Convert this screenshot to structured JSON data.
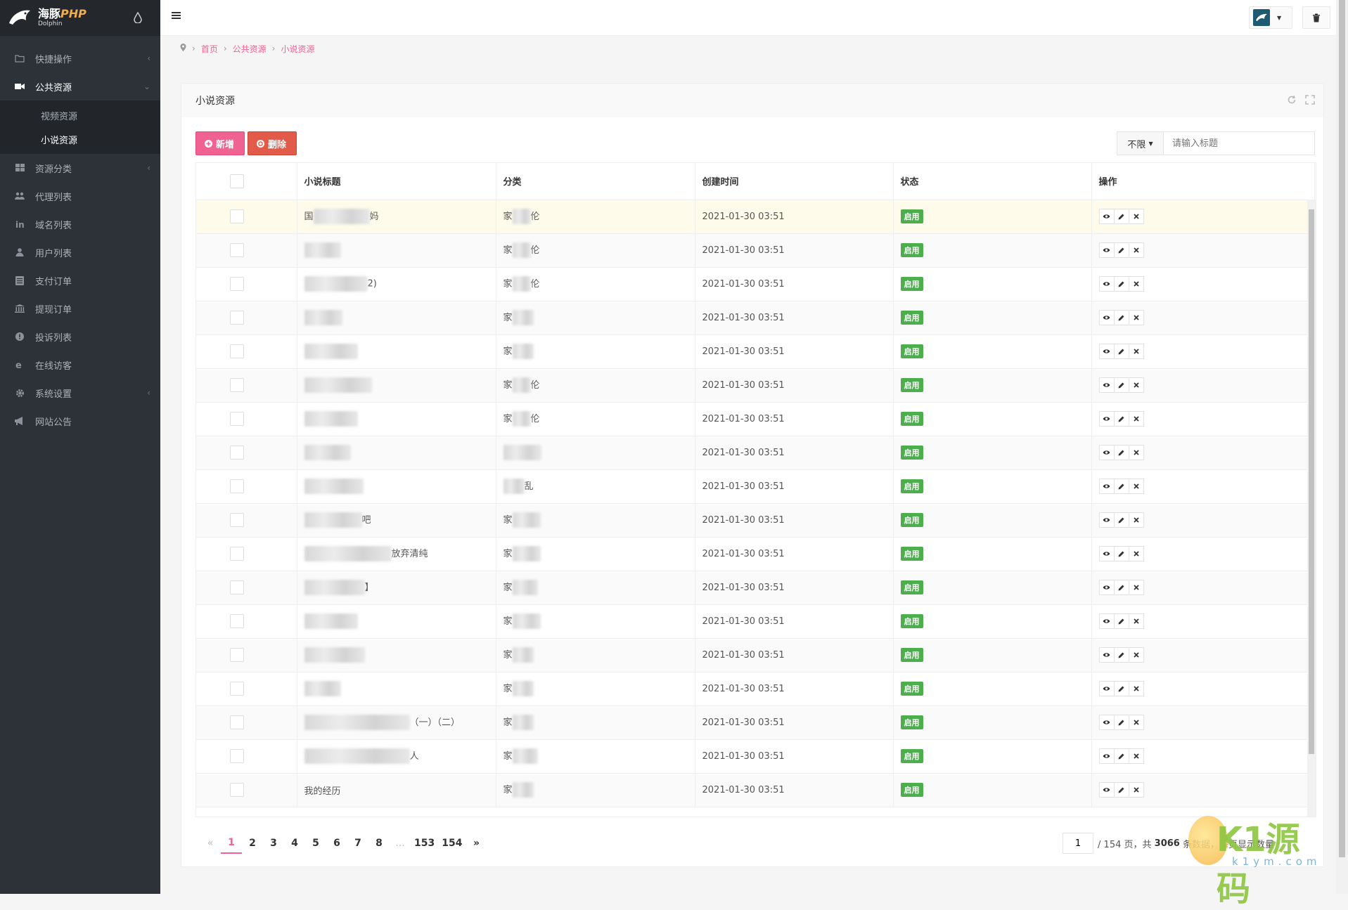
{
  "logo": {
    "main": "海豚",
    "main_accent": "PHP",
    "sub": "Dolphin"
  },
  "sidebar": {
    "items": [
      {
        "label": "快捷操作",
        "icon": "folder-icon",
        "chevron": "‹"
      },
      {
        "label": "公共资源",
        "icon": "video-icon",
        "chevron": "⌄",
        "active": true,
        "children": [
          {
            "label": "视频资源"
          },
          {
            "label": "小说资源",
            "active": true
          }
        ]
      },
      {
        "label": "资源分类",
        "icon": "grid-icon",
        "chevron": "‹"
      },
      {
        "label": "代理列表",
        "icon": "users-icon",
        "chevron": ""
      },
      {
        "label": "域名列表",
        "icon": "linkedin-icon",
        "chevron": ""
      },
      {
        "label": "用户列表",
        "icon": "user-icon",
        "chevron": ""
      },
      {
        "label": "支付订单",
        "icon": "list-icon",
        "chevron": ""
      },
      {
        "label": "提现订单",
        "icon": "bank-icon",
        "chevron": ""
      },
      {
        "label": "投诉列表",
        "icon": "alert-icon",
        "chevron": ""
      },
      {
        "label": "在线访客",
        "icon": "browser-icon",
        "chevron": ""
      },
      {
        "label": "系统设置",
        "icon": "gear-icon",
        "chevron": "‹"
      },
      {
        "label": "网站公告",
        "icon": "megaphone-icon",
        "chevron": ""
      }
    ]
  },
  "breadcrumb": [
    "首页",
    "公共资源",
    "小说资源"
  ],
  "panel": {
    "title": "小说资源"
  },
  "toolbar": {
    "add_label": "新增",
    "delete_label": "删除"
  },
  "search": {
    "select_label": "不限",
    "placeholder": "请输入标题"
  },
  "table": {
    "headers": [
      "小说标题",
      "分类",
      "创建时间",
      "状态",
      "操作"
    ],
    "status_label": "启用",
    "rows": [
      {
        "t_pre": "国",
        "t_blur": 80,
        "t_post": "妈",
        "c_pre": "家",
        "c_blur": 26,
        "c_post": "伦",
        "time": "2021-01-30 03:51"
      },
      {
        "t_pre": "",
        "t_blur": 52,
        "t_post": "",
        "c_pre": "家",
        "c_blur": 26,
        "c_post": "伦",
        "time": "2021-01-30 03:51"
      },
      {
        "t_pre": "",
        "t_blur": 90,
        "t_post": "2)",
        "c_pre": "家",
        "c_blur": 26,
        "c_post": "伦",
        "time": "2021-01-30 03:51"
      },
      {
        "t_pre": "",
        "t_blur": 54,
        "t_post": "",
        "c_pre": "家",
        "c_blur": 30,
        "c_post": "",
        "time": "2021-01-30 03:51"
      },
      {
        "t_pre": "",
        "t_blur": 76,
        "t_post": "",
        "c_pre": "家",
        "c_blur": 30,
        "c_post": "",
        "time": "2021-01-30 03:51"
      },
      {
        "t_pre": "",
        "t_blur": 96,
        "t_post": "",
        "c_pre": "家",
        "c_blur": 26,
        "c_post": "伦",
        "time": "2021-01-30 03:51"
      },
      {
        "t_pre": "",
        "t_blur": 76,
        "t_post": "",
        "c_pre": "家",
        "c_blur": 26,
        "c_post": "伦",
        "time": "2021-01-30 03:51"
      },
      {
        "t_pre": "",
        "t_blur": 66,
        "t_post": "",
        "c_pre": "",
        "c_blur": 54,
        "c_post": "",
        "time": "2021-01-30 03:51"
      },
      {
        "t_pre": "",
        "t_blur": 84,
        "t_post": "",
        "c_pre": "",
        "c_blur": 30,
        "c_post": "乱",
        "time": "2021-01-30 03:51"
      },
      {
        "t_pre": "",
        "t_blur": 82,
        "t_post": "吧",
        "c_pre": "家",
        "c_blur": 40,
        "c_post": "",
        "time": "2021-01-30 03:51"
      },
      {
        "t_pre": "",
        "t_blur": 124,
        "t_post": "放弃清纯",
        "c_pre": "家",
        "c_blur": 40,
        "c_post": "",
        "time": "2021-01-30 03:51"
      },
      {
        "t_pre": "",
        "t_blur": 86,
        "t_post": "】",
        "c_pre": "家",
        "c_blur": 36,
        "c_post": "",
        "time": "2021-01-30 03:51"
      },
      {
        "t_pre": "",
        "t_blur": 76,
        "t_post": "",
        "c_pre": "家",
        "c_blur": 40,
        "c_post": "",
        "time": "2021-01-30 03:51"
      },
      {
        "t_pre": "",
        "t_blur": 86,
        "t_post": "",
        "c_pre": "家",
        "c_blur": 30,
        "c_post": "",
        "time": "2021-01-30 03:51"
      },
      {
        "t_pre": "",
        "t_blur": 52,
        "t_post": "",
        "c_pre": "家",
        "c_blur": 30,
        "c_post": "",
        "time": "2021-01-30 03:51"
      },
      {
        "t_pre": "",
        "t_blur": 150,
        "t_post": "（一）（二）",
        "c_pre": "家",
        "c_blur": 30,
        "c_post": "",
        "time": "2021-01-30 03:51"
      },
      {
        "t_pre": "",
        "t_blur": 150,
        "t_post": "人",
        "c_pre": "家",
        "c_blur": 36,
        "c_post": "",
        "time": "2021-01-30 03:51"
      },
      {
        "t_pre": "我的经历",
        "t_blur": 0,
        "t_post": "",
        "c_pre": "家",
        "c_blur": 30,
        "c_post": "",
        "time": "2021-01-30 03:51"
      }
    ]
  },
  "pagination": {
    "prev": "«",
    "pages": [
      "1",
      "2",
      "3",
      "4",
      "5",
      "6",
      "7",
      "8",
      "...",
      "153",
      "154"
    ],
    "next": "»",
    "current_input": "1",
    "total_pages_text": "/ 154 页，共",
    "total_count": "3066",
    "count_suffix": "条数据，每页显示数量"
  },
  "watermark": {
    "text": "K1源码",
    "sub": "k1ym.com"
  },
  "colors": {
    "accent": "#f06292",
    "sidebar_bg": "#2d3238",
    "success": "#4cae4c",
    "danger": "#e25b4a"
  }
}
